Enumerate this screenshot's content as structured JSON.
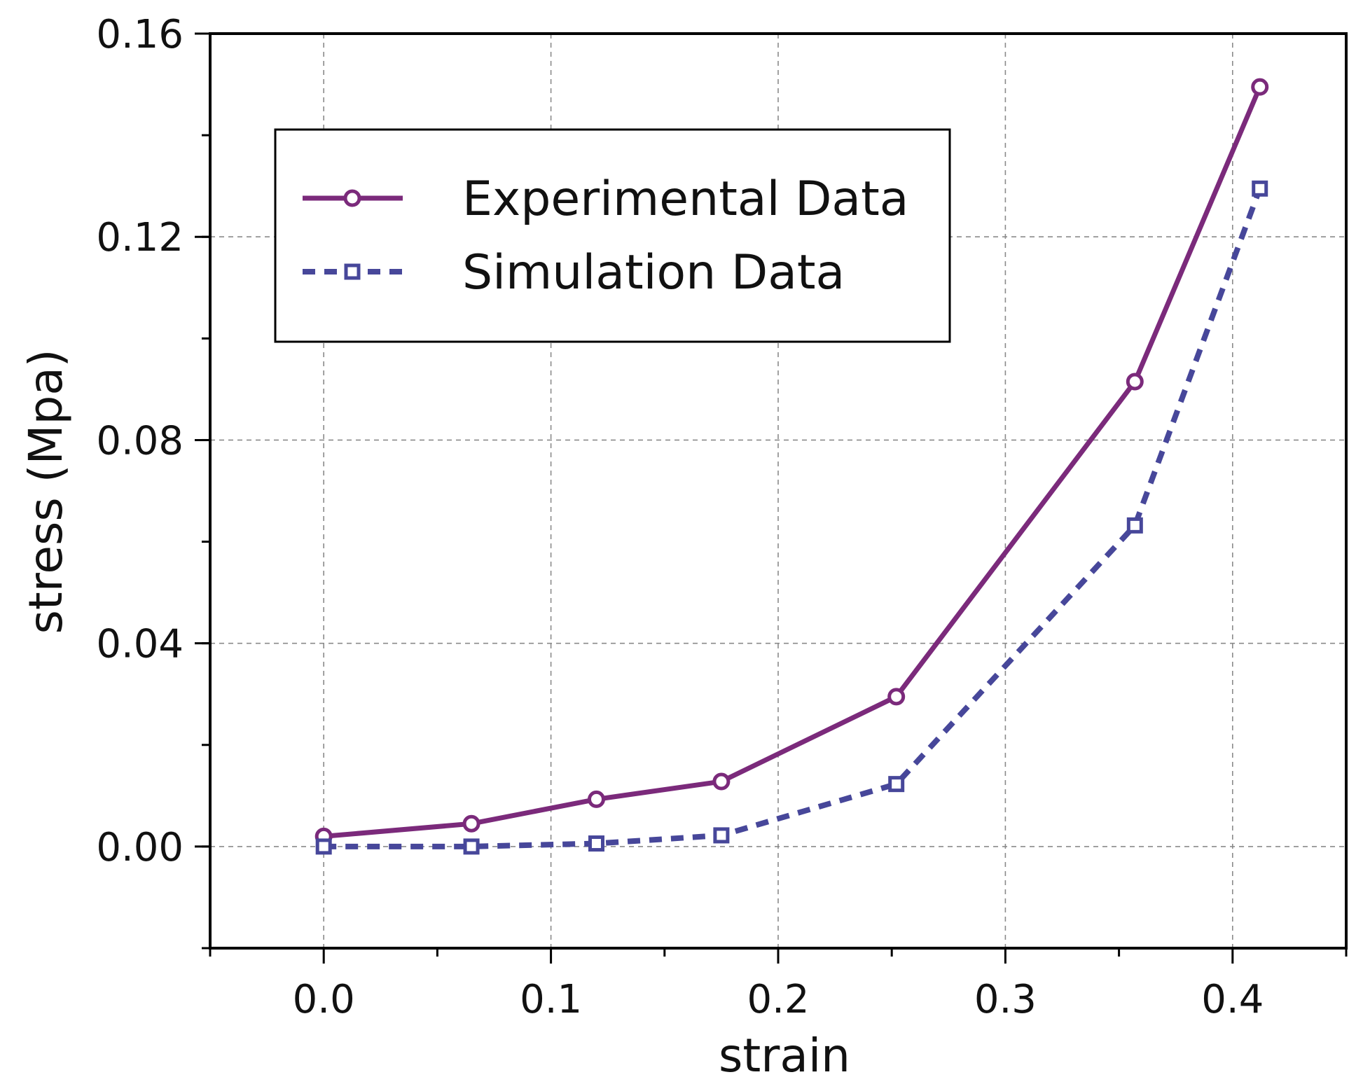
{
  "chart_data": {
    "type": "line",
    "title": "",
    "xlabel": "strain",
    "ylabel": "stress (Mpa)",
    "xlim": [
      -0.05,
      0.45
    ],
    "ylim": [
      -0.02,
      0.16
    ],
    "xticks": [
      0.0,
      0.1,
      0.2,
      0.3,
      0.4
    ],
    "xtick_labels": [
      "0.0",
      "0.1",
      "0.2",
      "0.3",
      "0.4"
    ],
    "yticks": [
      0.0,
      0.04,
      0.08,
      0.12,
      0.16
    ],
    "ytick_labels": [
      "0.00",
      "0.04",
      "0.08",
      "0.12",
      "0.16"
    ],
    "grid": true,
    "legend_position": "top-left",
    "series": [
      {
        "name": "Experimental Data",
        "color": "#7b2a7b",
        "style": "solid",
        "marker": "circle",
        "x": [
          0.0,
          0.065,
          0.12,
          0.175,
          0.252,
          0.357,
          0.412
        ],
        "y": [
          0.002,
          0.0045,
          0.0093,
          0.0128,
          0.0295,
          0.0915,
          0.1495
        ]
      },
      {
        "name": "Simulation Data",
        "color": "#47479a",
        "style": "dashed",
        "marker": "square",
        "x": [
          0.0,
          0.065,
          0.12,
          0.175,
          0.252,
          0.357,
          0.412
        ],
        "y": [
          0.0,
          0.0,
          0.0006,
          0.0022,
          0.0123,
          0.0632,
          0.1295
        ]
      }
    ]
  }
}
